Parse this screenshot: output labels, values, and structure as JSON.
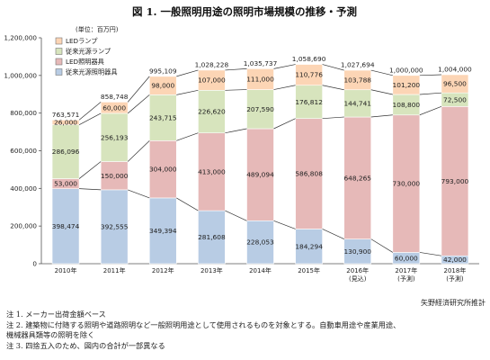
{
  "chart_data": {
    "type": "bar",
    "stacked": true,
    "title": "図 1. 一般照明用途の照明市場規模の推移・予測",
    "unit_label": "(単位：百万円)",
    "categories": [
      [
        "2010年"
      ],
      [
        "2011年"
      ],
      [
        "2012年"
      ],
      [
        "2013年"
      ],
      [
        "2014年"
      ],
      [
        "2015年"
      ],
      [
        "2016年",
        "(見込)"
      ],
      [
        "2017年",
        "(予測)"
      ],
      [
        "2018年",
        "(予測)"
      ]
    ],
    "ylim": [
      0,
      1200000
    ],
    "yticks": [
      0,
      200000,
      400000,
      600000,
      800000,
      1000000,
      1200000
    ],
    "ytick_labels": [
      "0",
      "200,000",
      "400,000",
      "600,000",
      "800,000",
      "1,000,000",
      "1,200,000"
    ],
    "series": [
      {
        "name": "従来光源照明器具",
        "color": "#b8cce4",
        "values": [
          398474,
          392555,
          349394,
          281608,
          228053,
          184294,
          130900,
          60000,
          42000
        ],
        "labels": [
          "398,474",
          "392,555",
          "349,394",
          "281,608",
          "228,053",
          "184,294",
          "130,900",
          "60,000",
          "42,000"
        ]
      },
      {
        "name": "LED照明器具",
        "color": "#e6b9b8",
        "values": [
          53000,
          150000,
          304000,
          413000,
          489094,
          586808,
          648265,
          730000,
          793000
        ],
        "labels": [
          "53,000",
          "150,000",
          "304,000",
          "413,000",
          "489,094",
          "586,808",
          "648,265",
          "730,000",
          "793,000"
        ]
      },
      {
        "name": "従来光源ランプ",
        "color": "#d7e4bd",
        "values": [
          286096,
          256193,
          243715,
          226620,
          207590,
          176812,
          144741,
          108800,
          72500
        ],
        "labels": [
          "286,096",
          "256,193",
          "243,715",
          "226,620",
          "207,590",
          "176,812",
          "144,741",
          "108,800",
          "72,500"
        ]
      },
      {
        "name": "LEDランプ",
        "color": "#fcd5b5",
        "values": [
          26000,
          60000,
          98000,
          107000,
          111000,
          110776,
          103788,
          101200,
          96500
        ],
        "labels": [
          "26,000",
          "60,000",
          "98,000",
          "107,000",
          "111,000",
          "110,776",
          "103,788",
          "101,200",
          "96,500"
        ]
      }
    ],
    "totals": [
      763571,
      858748,
      995109,
      1028228,
      1035737,
      1058690,
      1027694,
      1000000,
      1004000
    ],
    "total_labels": [
      "763,571",
      "858,748",
      "995,109",
      "1,028,228",
      "1,035,737",
      "1,058,690",
      "1,027,694",
      "1,000,000",
      "1,004,000"
    ],
    "legend_order": [
      "LEDランプ",
      "従来光源ランプ",
      "LED照明器具",
      "従来光源照明器具"
    ],
    "legend_position": "top-left",
    "grid": false,
    "connector_lines": true
  },
  "source": "矢野経済研究所推計",
  "notes": [
    "注 1. メーカー出荷金額ベース",
    "注 2. 建築物に付随する照明や道路照明など一般照明用途として使用されるものを対象とする。自動車用途や産業用途、",
    "機械器具類等の照明を除く",
    "注 3. 四捨五入のため、図内の合計が一部異なる"
  ]
}
